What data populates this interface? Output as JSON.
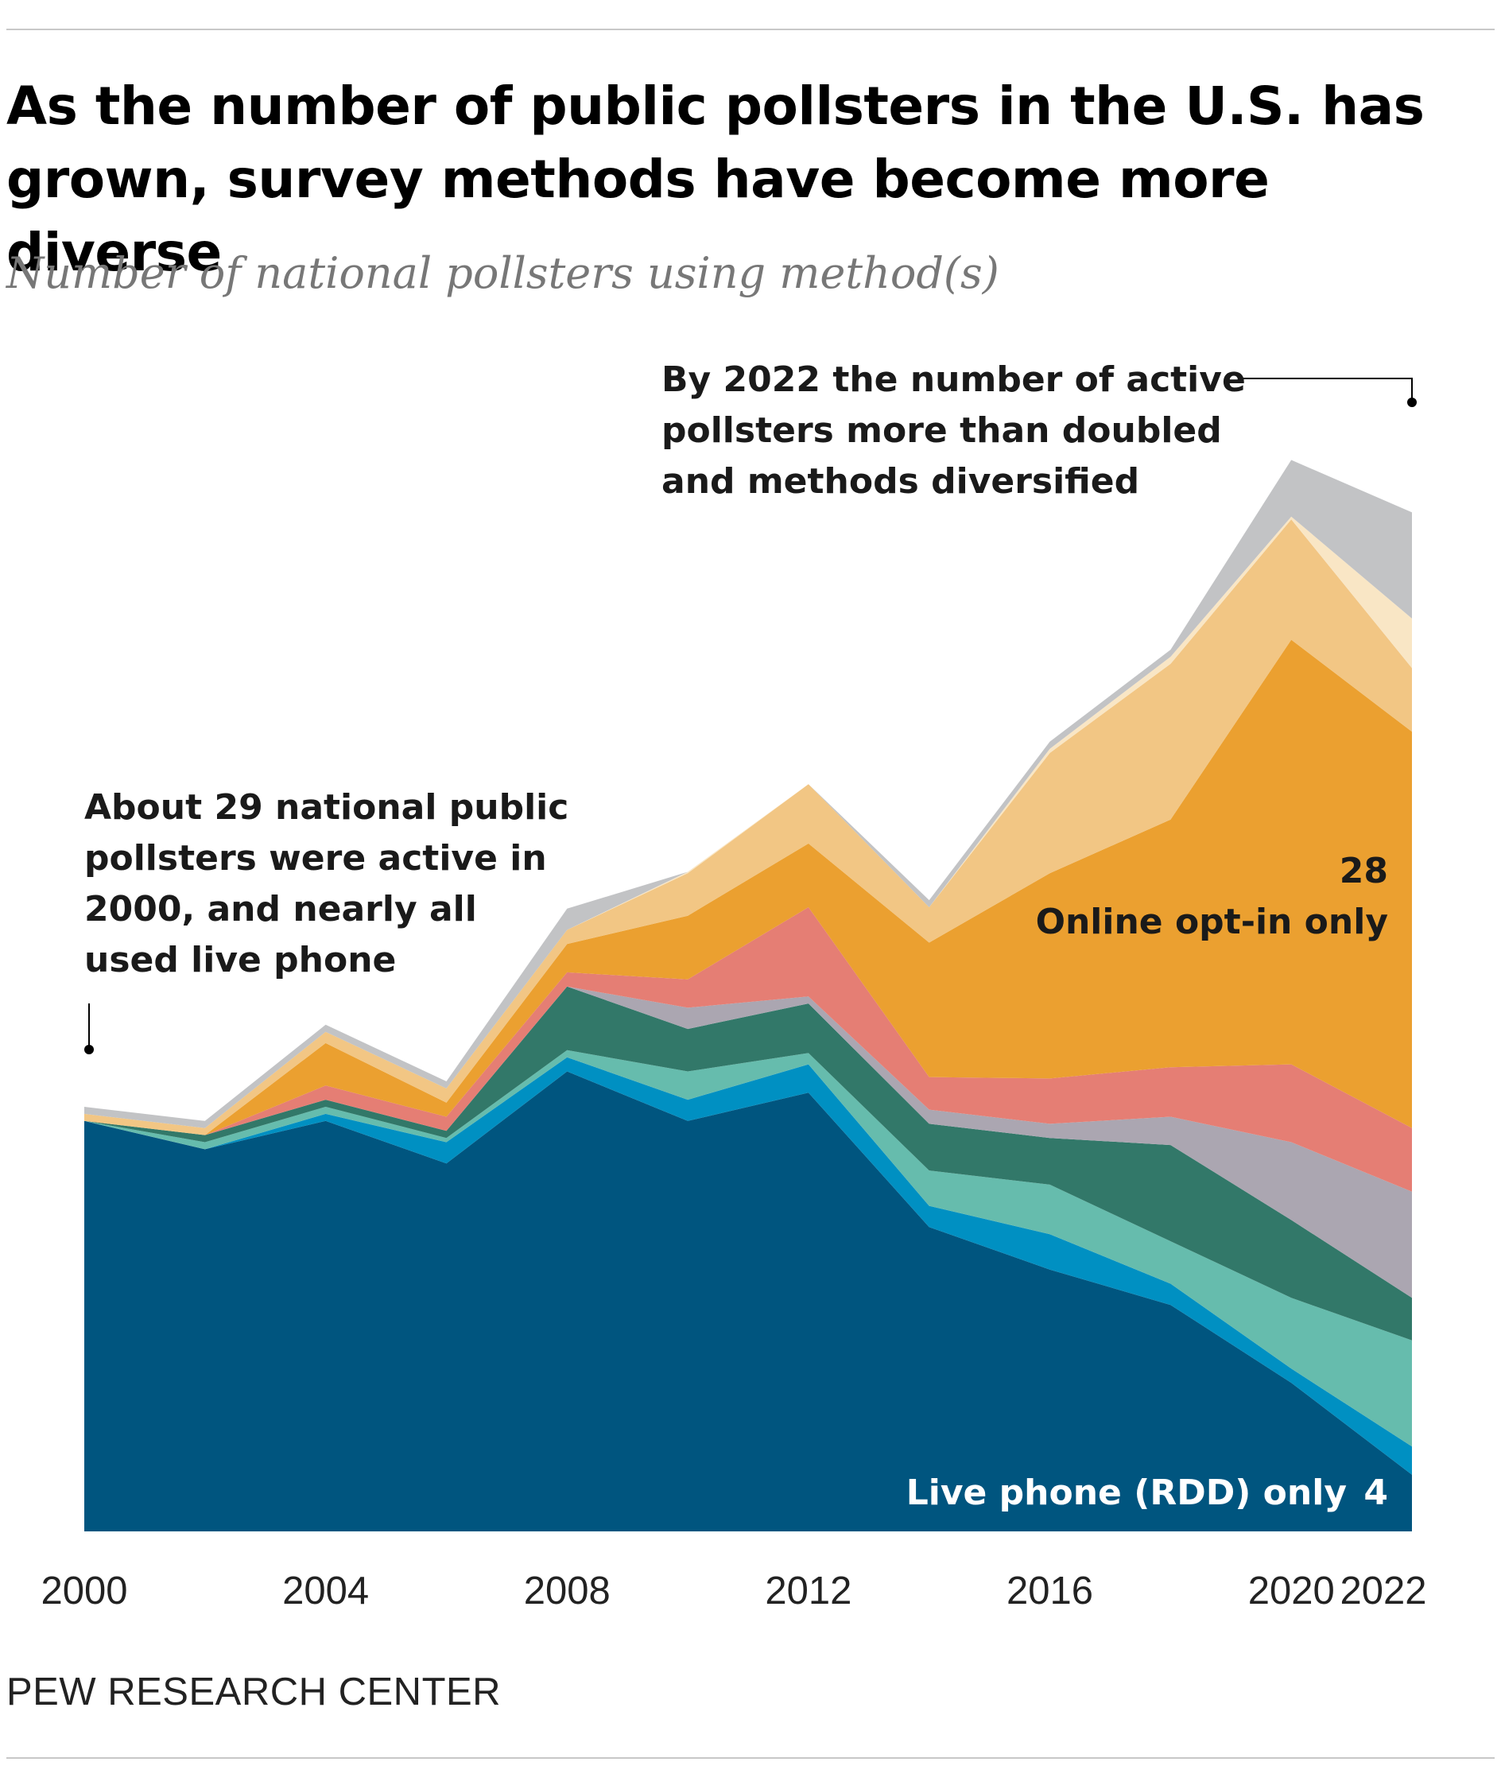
{
  "title": "As the number of public pollsters in the U.S. has grown, survey methods have become more diverse",
  "subtitle": "Number of national pollsters using method(s)",
  "source": "PEW RESEARCH CENTER",
  "annotations": {
    "year2000": {
      "lines": [
        "About 29 national public",
        "pollsters were active in",
        "2000, and nearly all",
        "used live phone"
      ]
    },
    "year2022": {
      "lines": [
        "By 2022 the number of active",
        "pollsters more than doubled",
        "and methods diversified"
      ]
    }
  },
  "labels": {
    "online_value": "28",
    "online_name": "Online opt-in only",
    "live_name": "Live phone (RDD) only",
    "live_value": "4"
  },
  "chart_data": {
    "type": "area",
    "stacked": true,
    "x": [
      2000,
      2002,
      2004,
      2006,
      2008,
      2010,
      2012,
      2014,
      2016,
      2018,
      2020,
      2022
    ],
    "x_ticks": [
      "2000",
      "2004",
      "2008",
      "2012",
      "2016",
      "2020",
      "2022"
    ],
    "ylim": [
      0,
      78
    ],
    "series": [
      {
        "name": "Live phone (RDD) only",
        "color": "#00557f",
        "values": [
          29,
          27,
          29,
          26,
          32.5,
          29,
          31,
          21.5,
          18.5,
          16,
          10.5,
          4
        ]
      },
      {
        "color": "#0090c2",
        "values": [
          0,
          0,
          0.5,
          1.5,
          1,
          1.5,
          2,
          1.5,
          2.5,
          1.5,
          1,
          2
        ]
      },
      {
        "color": "#66bcad",
        "values": [
          0,
          0.5,
          0.5,
          0.3,
          0.5,
          2,
          0.8,
          2.5,
          3.5,
          3,
          5,
          7.5
        ]
      },
      {
        "color": "#327869",
        "values": [
          0,
          0.5,
          0.5,
          0.5,
          4.5,
          3,
          3.5,
          3.3,
          3.3,
          6.8,
          5.5,
          3
        ]
      },
      {
        "color": "#aba6b1",
        "values": [
          0,
          0,
          0,
          0,
          0,
          1.5,
          0.5,
          1,
          1,
          2,
          5.5,
          7.5
        ]
      },
      {
        "color": "#e57e74",
        "values": [
          0,
          0,
          1,
          1,
          1,
          2,
          6.3,
          2.3,
          3.2,
          3.5,
          5.5,
          4.5
        ]
      },
      {
        "name": "Online opt-in only",
        "color": "#eba030",
        "values": [
          0,
          0,
          3,
          1,
          2,
          4.5,
          4.5,
          9.5,
          14.5,
          17.5,
          30,
          28
        ]
      },
      {
        "color": "#f2c684",
        "values": [
          0.5,
          0.5,
          0.8,
          1,
          1,
          3,
          4.2,
          2.5,
          8.5,
          11,
          8.5,
          4.5
        ]
      },
      {
        "color": "#f9e6c5",
        "values": [
          0,
          0,
          0,
          0,
          0,
          0.1,
          0,
          0,
          0.3,
          0.5,
          0.2,
          3.5
        ]
      },
      {
        "color": "#c2c3c5",
        "values": [
          0.5,
          0.5,
          0.5,
          0.5,
          1.5,
          0,
          0,
          0.5,
          0.5,
          0.5,
          4,
          7.5
        ]
      }
    ]
  }
}
